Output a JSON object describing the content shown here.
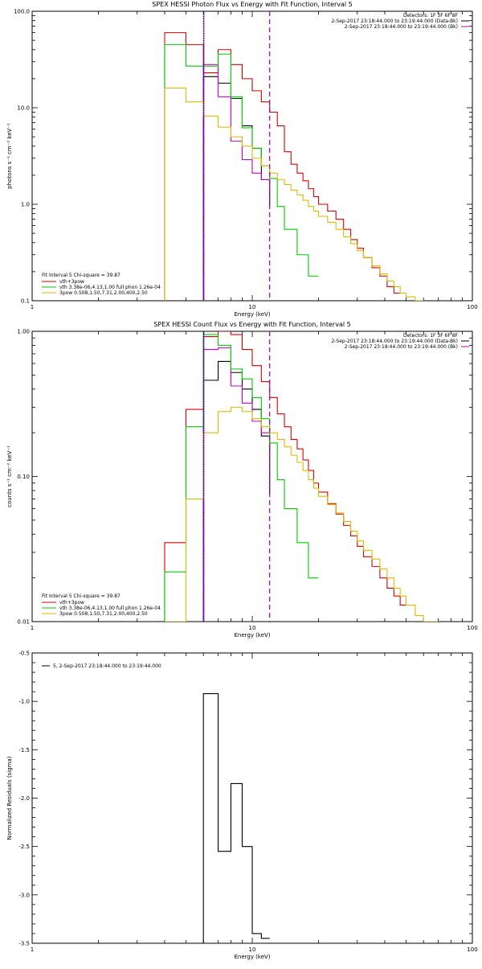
{
  "chart_data": [
    {
      "type": "line",
      "title": "SPEX HESSI Photon Flux vs Energy with Fit Function, Interval 5",
      "xlabel": "Energy (keV)",
      "ylabel": "photons s⁻¹ cm⁻² keV⁻¹",
      "xscale": "log",
      "yscale": "log",
      "xlim": [
        1,
        100
      ],
      "ylim": [
        0.1,
        100
      ],
      "xticks": [
        "1",
        "10",
        "100"
      ],
      "yticks": [
        "0.1",
        "1.0",
        "10.0",
        "100.0"
      ],
      "grid": false,
      "legend_placement": "bottom-left",
      "header_lines": [
        {
          "text": "Detectors: 1F 3F 6F 8F",
          "color": ""
        },
        {
          "text": "2-Sep-2017 23:18:44.000 to 23:19:44.000 (Data-Bk)",
          "color": "#000000"
        },
        {
          "text": "2-Sep-2017 23:18:44.000 to 23:19:44.000 (Bk)",
          "color": "#cc00cc"
        }
      ],
      "legend_title": "Fit Interval 5   Chi-square = 39.87",
      "legend": [
        {
          "text": "vth+3pow",
          "color": "#dd0000"
        },
        {
          "text": "vth 3.38e-06,4.13,1.00  full phon 1.26e-04",
          "color": "#00cc00"
        },
        {
          "text": "3pow 0.508,1.50,7.31,2.00,400,2.50",
          "color": "#ddbb00"
        }
      ],
      "vlines": [
        {
          "x": 6.0,
          "style": "dotted",
          "color": "#000000"
        },
        {
          "x": 6.0,
          "style": "solid",
          "color": "#6600cc"
        },
        {
          "x": 12.0,
          "style": "dashed",
          "color": "#000000"
        },
        {
          "x": 12.0,
          "style": "dashed",
          "color": "#cc00cc"
        }
      ],
      "series": [
        {
          "color": "#dd0000",
          "edges": [
            4,
            5,
            6,
            7,
            8,
            9,
            10,
            11,
            12,
            13,
            14,
            15,
            16,
            17,
            18,
            19,
            20,
            22,
            24,
            26,
            28,
            30,
            32,
            35,
            38,
            41,
            44,
            47
          ],
          "values": [
            60,
            45,
            23,
            40,
            28,
            20,
            15,
            11.5,
            9,
            6.5,
            3.5,
            2.6,
            2.1,
            1.75,
            1.45,
            1.2,
            1.0,
            0.85,
            0.7,
            0.55,
            0.43,
            0.35,
            0.28,
            0.22,
            0.18,
            0.14,
            0.12
          ]
        },
        {
          "color": "#000000",
          "edges": [
            6,
            7,
            8,
            9,
            10,
            11,
            12
          ],
          "values": [
            21,
            18,
            12.5,
            6.5,
            3.8,
            1.8,
            0.95
          ]
        },
        {
          "color": "#cc00cc",
          "edges": [
            6,
            7,
            8,
            9,
            10,
            11,
            12
          ],
          "values": [
            28,
            13,
            4.5,
            2.9,
            2.1,
            1.8,
            1.5
          ]
        },
        {
          "color": "#00cc00",
          "edges": [
            4,
            5,
            6,
            7,
            8,
            9,
            10,
            11,
            12,
            13,
            14,
            16,
            18,
            20
          ],
          "values": [
            45,
            27,
            27,
            36,
            13,
            6.2,
            3.8,
            2.5,
            1.85,
            0.95,
            0.55,
            0.3,
            0.18
          ]
        },
        {
          "color": "#ddbb00",
          "edges": [
            4,
            5,
            6,
            7,
            8,
            9,
            10,
            11,
            12,
            13,
            14,
            15,
            16,
            17,
            18,
            19,
            20,
            22,
            24,
            26,
            28,
            30,
            32,
            35,
            38,
            41,
            44,
            47,
            50,
            55,
            60
          ],
          "values": [
            16,
            11.5,
            8.2,
            6.3,
            5.0,
            4.0,
            3.0,
            2.5,
            2.1,
            1.8,
            1.6,
            1.4,
            1.25,
            1.1,
            0.95,
            0.85,
            0.75,
            0.65,
            0.55,
            0.46,
            0.39,
            0.33,
            0.28,
            0.23,
            0.19,
            0.16,
            0.14,
            0.12,
            0.11,
            0.1
          ]
        }
      ]
    },
    {
      "type": "line",
      "title": "SPEX HESSI Count Flux vs Energy with Fit Function, Interval 5",
      "xlabel": "Energy (keV)",
      "ylabel": "counts s⁻¹ cm⁻² keV⁻¹",
      "xscale": "log",
      "yscale": "log",
      "xlim": [
        1,
        100
      ],
      "ylim": [
        0.01,
        1
      ],
      "xticks": [
        "1",
        "10",
        "100"
      ],
      "yticks": [
        "0.01",
        "0.10",
        "1.00"
      ],
      "grid": false,
      "legend_placement": "bottom-left",
      "header_lines": [
        {
          "text": "Detectors: 1F 3F 6F 8F",
          "color": ""
        },
        {
          "text": "2-Sep-2017 23:18:44.000 to 23:19:44.000 (Data-Bk)",
          "color": "#000000"
        },
        {
          "text": "2-Sep-2017 23:18:44.000 to 23:19:44.000 (Bk)",
          "color": "#cc00cc"
        }
      ],
      "legend_title": "Fit Interval 5   Chi-square = 39.87",
      "legend": [
        {
          "text": "vth+3pow",
          "color": "#dd0000"
        },
        {
          "text": "vth 3.38e-06,4.13,1.00  full phon 1.26e-04",
          "color": "#00cc00"
        },
        {
          "text": "3pow 0.508,1.50,7.31,2.00,400,2.50",
          "color": "#ddbb00"
        }
      ],
      "vlines": [
        {
          "x": 6.0,
          "style": "dotted",
          "color": "#000000"
        },
        {
          "x": 6.0,
          "style": "solid",
          "color": "#6600cc"
        },
        {
          "x": 12.0,
          "style": "dashed",
          "color": "#000000"
        },
        {
          "x": 12.0,
          "style": "dashed",
          "color": "#cc00cc"
        }
      ],
      "series": [
        {
          "color": "#dd0000",
          "edges": [
            4,
            5,
            6,
            7,
            8,
            9,
            10,
            11,
            12,
            13,
            14,
            15,
            16,
            17,
            18,
            19,
            20,
            22,
            24,
            26,
            28,
            30,
            32,
            35,
            38,
            41,
            44,
            47,
            50
          ],
          "values": [
            0.035,
            0.29,
            0.92,
            1.0,
            0.95,
            0.75,
            0.58,
            0.45,
            0.35,
            0.27,
            0.22,
            0.18,
            0.155,
            0.13,
            0.11,
            0.09,
            0.078,
            0.065,
            0.055,
            0.046,
            0.039,
            0.033,
            0.028,
            0.024,
            0.02,
            0.017,
            0.015,
            0.013
          ]
        },
        {
          "color": "#000000",
          "edges": [
            6,
            7,
            8,
            9,
            10,
            11,
            12
          ],
          "values": [
            0.46,
            0.62,
            0.52,
            0.4,
            0.29,
            0.19,
            0.075
          ]
        },
        {
          "color": "#cc00cc",
          "edges": [
            6,
            7,
            8,
            9,
            10,
            11,
            12
          ],
          "values": [
            0.75,
            0.77,
            0.42,
            0.32,
            0.24,
            0.2,
            0.19
          ]
        },
        {
          "color": "#00cc00",
          "edges": [
            4,
            5,
            6,
            7,
            8,
            9,
            10,
            11,
            12,
            13,
            14,
            16,
            18,
            20
          ],
          "values": [
            0.022,
            0.22,
            0.95,
            0.8,
            0.55,
            0.47,
            0.35,
            0.25,
            0.17,
            0.095,
            0.06,
            0.035,
            0.02
          ]
        },
        {
          "color": "#ddbb00",
          "edges": [
            4,
            5,
            6,
            7,
            8,
            9,
            10,
            11,
            12,
            13,
            14,
            15,
            16,
            17,
            18,
            19,
            20,
            22,
            24,
            26,
            28,
            30,
            32,
            35,
            38,
            41,
            44,
            47,
            50,
            55,
            60,
            65,
            70
          ],
          "values": [
            0.0085,
            0.07,
            0.2,
            0.28,
            0.3,
            0.28,
            0.25,
            0.22,
            0.2,
            0.18,
            0.16,
            0.14,
            0.125,
            0.11,
            0.095,
            0.083,
            0.073,
            0.064,
            0.056,
            0.049,
            0.042,
            0.036,
            0.031,
            0.027,
            0.023,
            0.02,
            0.017,
            0.015,
            0.013,
            0.011,
            0.0095,
            0.0085
          ]
        }
      ]
    },
    {
      "type": "line",
      "title": "",
      "xlabel": "Energy (keV)",
      "ylabel": "Normalized Residuals (sigma)",
      "xscale": "log",
      "yscale": "linear",
      "xlim": [
        1,
        100
      ],
      "ylim": [
        -3.5,
        -0.5
      ],
      "xticks": [
        "1",
        "10",
        "100"
      ],
      "yticks": [
        "-3.5",
        "-3.0",
        "-2.5",
        "-2.0",
        "-1.5",
        "-1.0",
        "-0.5"
      ],
      "grid": false,
      "legend_placement": "top-left",
      "legend": [
        {
          "text": "5,  2-Sep-2017 23:18:44.000 to 23:19:44.000",
          "color": "#000000"
        }
      ],
      "series": [
        {
          "color": "#000000",
          "edges": [
            6,
            7,
            8,
            9,
            10,
            11,
            12
          ],
          "values": [
            -0.92,
            -2.55,
            -1.85,
            -2.5,
            -3.4,
            -3.45
          ]
        }
      ]
    }
  ]
}
